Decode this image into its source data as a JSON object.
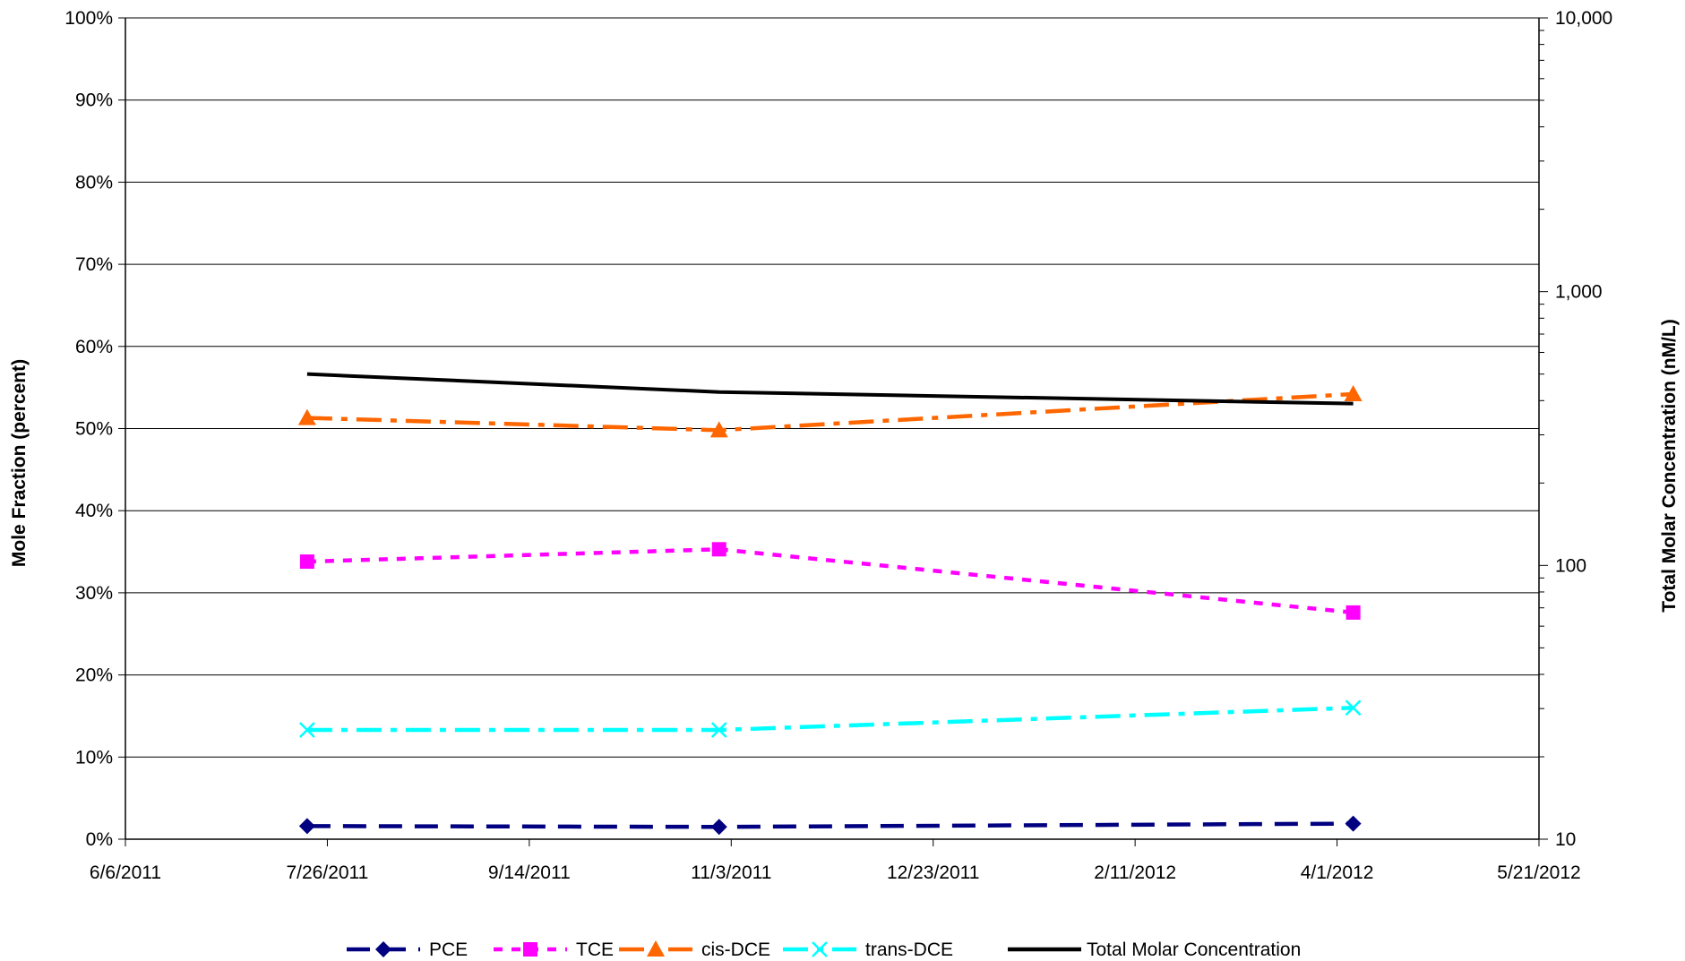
{
  "chart_data": {
    "type": "line",
    "title": "",
    "xlabel": "",
    "ylabel": "Mole Fraction (percent)",
    "y2label": "Total Molar Concentration (nM/L)",
    "x_ticks": [
      "6/6/2011",
      "7/26/2011",
      "9/14/2011",
      "11/3/2011",
      "12/23/2011",
      "2/11/2012",
      "4/1/2012",
      "5/21/2012"
    ],
    "xlim": [
      "2011-06-06",
      "2012-05-21"
    ],
    "ylim": [
      0,
      100
    ],
    "y_ticks": [
      "0%",
      "10%",
      "20%",
      "30%",
      "40%",
      "50%",
      "60%",
      "70%",
      "80%",
      "90%",
      "100%"
    ],
    "y2_scale": "log",
    "y2lim": [
      10,
      10000
    ],
    "y2_ticks": [
      "10",
      "100",
      "1,000",
      "10,000"
    ],
    "grid": "horizontal",
    "legend_position": "bottom",
    "x": [
      "2011-07-21",
      "2011-10-31",
      "2012-04-05"
    ],
    "series": [
      {
        "name": "PCE",
        "axis": "left",
        "values": [
          1.6,
          1.5,
          1.9
        ],
        "color": "#000080",
        "marker": "diamond",
        "dash": "dash"
      },
      {
        "name": "TCE",
        "axis": "left",
        "values": [
          33.8,
          35.3,
          27.6
        ],
        "color": "#ff00ff",
        "marker": "square",
        "dash": "dot"
      },
      {
        "name": "cis-DCE",
        "axis": "left",
        "values": [
          51.3,
          49.8,
          54.2
        ],
        "color": "#ff6600",
        "marker": "triangle",
        "dash": "dashdot"
      },
      {
        "name": "trans-DCE",
        "axis": "left",
        "values": [
          13.3,
          13.3,
          16.0
        ],
        "color": "#00ffff",
        "marker": "x",
        "dash": "dashdot"
      },
      {
        "name": "Total Molar Concentration",
        "axis": "right",
        "values": [
          500,
          430,
          390
        ],
        "color": "#000000",
        "marker": "none",
        "dash": "solid"
      }
    ]
  }
}
